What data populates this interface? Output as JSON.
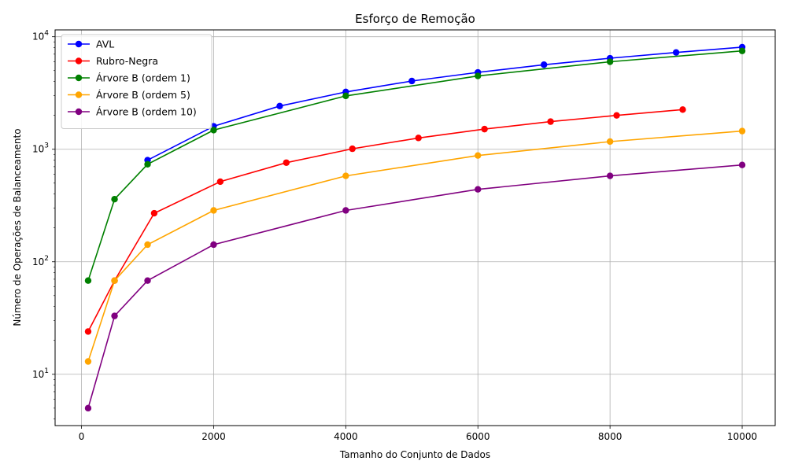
{
  "chart_data": {
    "type": "line",
    "title": "Esforço de Remoção",
    "xlabel": "Tamanho do Conjunto de Dados",
    "ylabel": "Número de Operações de Balanceamento",
    "xlim": [
      -400,
      10500
    ],
    "ylim": [
      3.5,
      11500
    ],
    "yscale": "log",
    "grid": true,
    "legend_position": "top-left",
    "x_ticks": [
      {
        "value": 0,
        "label": "0"
      },
      {
        "value": 2000,
        "label": "2000"
      },
      {
        "value": 4000,
        "label": "4000"
      },
      {
        "value": 6000,
        "label": "6000"
      },
      {
        "value": 8000,
        "label": "8000"
      },
      {
        "value": 10000,
        "label": "10000"
      }
    ],
    "y_ticks": [
      {
        "value": 10,
        "base": "10",
        "exp": "1"
      },
      {
        "value": 100,
        "base": "10",
        "exp": "2"
      },
      {
        "value": 1000,
        "base": "10",
        "exp": "3"
      },
      {
        "value": 10000,
        "base": "10",
        "exp": "4"
      }
    ],
    "series": [
      {
        "name": "AVL",
        "color": "#0000ff",
        "points": [
          [
            1000,
            800
          ],
          [
            2000,
            1600
          ],
          [
            3000,
            2420
          ],
          [
            4000,
            3230
          ],
          [
            5000,
            4040
          ],
          [
            6000,
            4820
          ],
          [
            7000,
            5640
          ],
          [
            8000,
            6440
          ],
          [
            9000,
            7250
          ],
          [
            10000,
            8080
          ]
        ]
      },
      {
        "name": "Rubro-Negra",
        "color": "#ff0000",
        "points": [
          [
            100,
            24
          ],
          [
            500,
            68
          ],
          [
            1100,
            270
          ],
          [
            2100,
            515
          ],
          [
            3100,
            760
          ],
          [
            4100,
            1010
          ],
          [
            5100,
            1260
          ],
          [
            6100,
            1510
          ],
          [
            7100,
            1760
          ],
          [
            8100,
            2000
          ],
          [
            9100,
            2250
          ]
        ]
      },
      {
        "name": "Árvore B (ordem 1)",
        "color": "#008000",
        "points": [
          [
            100,
            68
          ],
          [
            500,
            360
          ],
          [
            1000,
            735
          ],
          [
            2000,
            1480
          ],
          [
            4000,
            2980
          ],
          [
            6000,
            4480
          ],
          [
            8000,
            5990
          ],
          [
            10000,
            7480
          ]
        ]
      },
      {
        "name": "Árvore B (ordem 5)",
        "color": "#ffa500",
        "points": [
          [
            100,
            13
          ],
          [
            500,
            68
          ],
          [
            1000,
            142
          ],
          [
            2000,
            286
          ],
          [
            4000,
            580
          ],
          [
            6000,
            880
          ],
          [
            8000,
            1170
          ],
          [
            10000,
            1450
          ]
        ]
      },
      {
        "name": "Árvore B (ordem 10)",
        "color": "#800080",
        "points": [
          [
            100,
            5
          ],
          [
            500,
            33
          ],
          [
            1000,
            68
          ],
          [
            2000,
            142
          ],
          [
            4000,
            286
          ],
          [
            6000,
            440
          ],
          [
            8000,
            580
          ],
          [
            10000,
            725
          ]
        ]
      }
    ]
  }
}
